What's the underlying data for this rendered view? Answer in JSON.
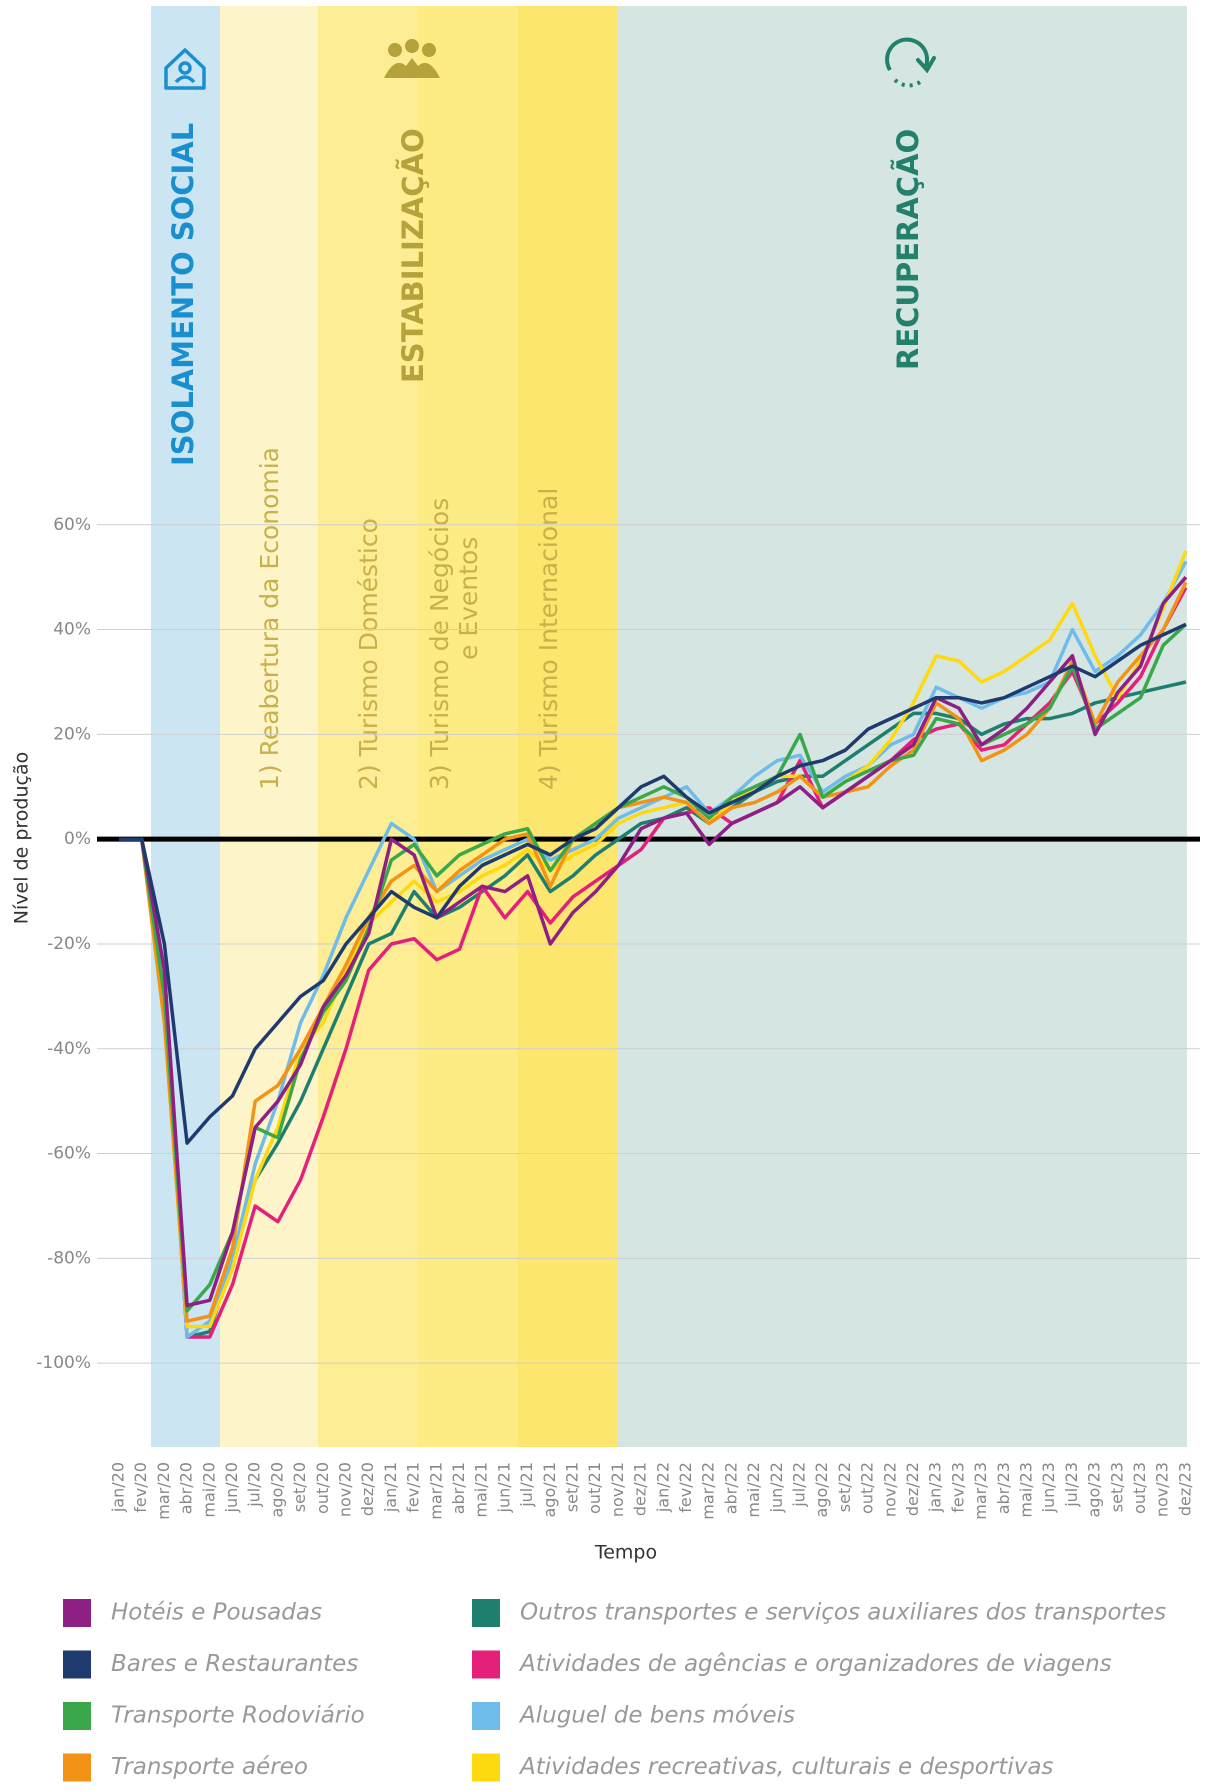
{
  "chart_data": {
    "type": "line",
    "bands": [
      {
        "label": "ISOLAMENTO SOCIAL"
      },
      {
        "label": "ESTABILIZAÇÃO"
      },
      {
        "label": "RECUPERAÇÃO"
      }
    ],
    "phases": [
      [
        "1) Reabertura da Economia"
      ],
      [
        "2) Turismo Doméstico"
      ],
      [
        "3) Turismo de Negócios",
        "e Eventos"
      ],
      [
        "4) Turismo Internacional"
      ]
    ],
    "y_label": "Nível de produção",
    "x_label": "Tempo",
    "categories": [
      "jan/20",
      "fev/20",
      "mar/20",
      "abr/20",
      "mai/20",
      "jun/20",
      "jul/20",
      "ago/20",
      "set/20",
      "out/20",
      "nov/20",
      "dez/20",
      "jan/21",
      "fev/21",
      "mar/21",
      "abr/21",
      "mai/21",
      "jun/21",
      "jul/21",
      "ago/21",
      "set/21",
      "out/21",
      "nov/21",
      "dez/21",
      "jan/22",
      "fev/22",
      "mar/22",
      "abr/22",
      "mai/22",
      "jun/22",
      "jul/22",
      "ago/22",
      "set/22",
      "out/22",
      "nov/22",
      "dez/22",
      "jan/23",
      "fev/23",
      "mar/23",
      "abr/23",
      "mai/23",
      "jun/23",
      "jul/23",
      "ago/23",
      "set/23",
      "out/23",
      "nov/23",
      "dez/23"
    ],
    "ylim": [
      -116,
      159
    ],
    "yticks": [
      {
        "value": -100,
        "label": "-100%"
      },
      {
        "value": -80,
        "label": "-80%"
      },
      {
        "value": -60,
        "label": "-60%"
      },
      {
        "value": -40,
        "label": "-40%"
      },
      {
        "value": -20,
        "label": "-20%"
      },
      {
        "value": 0,
        "label": "0%"
      },
      {
        "value": 20,
        "label": "20%"
      },
      {
        "value": 40,
        "label": "40%"
      },
      {
        "value": 60,
        "label": "60%"
      }
    ],
    "grid": true,
    "series": [
      {
        "name": "Outros transportes e serviços auxiliares dos transportes",
        "color": "#1f7f6e",
        "values": [
          0,
          0,
          -28,
          -95,
          -94,
          -80,
          -65,
          -58,
          -50,
          -40,
          -30,
          -20,
          -18,
          -10,
          -15,
          -13,
          -10,
          -7,
          -3,
          -10,
          -7,
          -3,
          0,
          3,
          4,
          6,
          3,
          6,
          9,
          11,
          12,
          12,
          15,
          18,
          21,
          24,
          24,
          23,
          20,
          22,
          23,
          23,
          24,
          26,
          27,
          28,
          29,
          30
        ]
      },
      {
        "name": "Atividades de agências e organizadores de viagens",
        "color": "#e5207a",
        "values": [
          0,
          0,
          -30,
          -95,
          -95,
          -85,
          -70,
          -73,
          -65,
          -53,
          -40,
          -25,
          -20,
          -19,
          -23,
          -21,
          -9,
          -15,
          -10,
          -16,
          -11,
          -8,
          -5,
          -2,
          4,
          5,
          6,
          3,
          5,
          7,
          15,
          6,
          9,
          12,
          15,
          19,
          21,
          22,
          17,
          18,
          22,
          26,
          32,
          22,
          26,
          31,
          40,
          48
        ]
      },
      {
        "name": "Aluguel de bens móveis",
        "color": "#6fbbe9",
        "values": [
          0,
          0,
          -28,
          -95,
          -92,
          -80,
          -62,
          -50,
          -35,
          -26,
          -15,
          -6,
          3,
          0,
          -10,
          -7,
          -4,
          -2,
          0,
          -4,
          -2,
          0,
          4,
          6,
          8,
          10,
          5,
          8,
          12,
          15,
          16,
          9,
          12,
          14,
          18,
          20,
          29,
          27,
          25,
          27,
          28,
          30,
          40,
          32,
          35,
          39,
          45,
          53
        ]
      },
      {
        "name": "Atividades recreativas, culturais e desportivas",
        "color": "#ffd90f",
        "values": [
          0,
          0,
          -35,
          -93,
          -93,
          -82,
          -65,
          -55,
          -40,
          -35,
          -25,
          -16,
          -12,
          -8,
          -12,
          -10,
          -7,
          -5,
          -2,
          -6,
          -3,
          -1,
          3,
          5,
          6,
          7,
          3,
          7,
          10,
          12,
          12,
          8,
          11,
          14,
          19,
          26,
          35,
          34,
          30,
          32,
          35,
          38,
          45,
          35,
          27,
          34,
          44,
          55
        ]
      },
      {
        "name": "Transporte aéreo",
        "color": "#f39315",
        "values": [
          0,
          0,
          -35,
          -92,
          -91,
          -78,
          -50,
          -47,
          -40,
          -32,
          -24,
          -15,
          -8,
          -5,
          -10,
          -6,
          -3,
          0,
          1,
          -9,
          0,
          3,
          6,
          7,
          8,
          7,
          3,
          6,
          7,
          9,
          12,
          8,
          9,
          10,
          14,
          17,
          26,
          23,
          15,
          17,
          20,
          25,
          34,
          22,
          30,
          35,
          40,
          49
        ]
      },
      {
        "name": "Transporte Rodoviário",
        "color": "#3aa84a",
        "values": [
          0,
          0,
          -30,
          -90,
          -85,
          -75,
          -55,
          -57,
          -42,
          -33,
          -27,
          -17,
          -4,
          -1,
          -7,
          -3,
          -1,
          1,
          2,
          -6,
          0,
          3,
          6,
          8,
          10,
          8,
          4,
          8,
          10,
          12,
          20,
          8,
          11,
          13,
          15,
          16,
          23,
          22,
          18,
          20,
          22,
          25,
          33,
          21,
          24,
          27,
          37,
          41
        ]
      },
      {
        "name": "Hotéis e Pousadas",
        "color": "#8e1f85",
        "values": [
          0,
          0,
          -25,
          -89,
          -88,
          -75,
          -55,
          -50,
          -43,
          -32,
          -26,
          -18,
          0,
          -3,
          -15,
          -12,
          -9,
          -10,
          -7,
          -20,
          -14,
          -10,
          -5,
          2,
          4,
          5,
          -1,
          3,
          5,
          7,
          10,
          6,
          9,
          12,
          15,
          18,
          27,
          25,
          18,
          21,
          25,
          30,
          35,
          20,
          28,
          33,
          45,
          50
        ]
      },
      {
        "name": "Bares e Restaurantes",
        "color": "#1f3a6e",
        "values": [
          0,
          0,
          -20,
          -58,
          -53,
          -49,
          -40,
          -35,
          -30,
          -27,
          -20,
          -15,
          -10,
          -13,
          -15,
          -9,
          -5,
          -3,
          -1,
          -3,
          0,
          2,
          6,
          10,
          12,
          8,
          5,
          7,
          9,
          12,
          14,
          15,
          17,
          21,
          23,
          25,
          27,
          27,
          26,
          27,
          29,
          31,
          33,
          31,
          34,
          37,
          39,
          41
        ]
      }
    ],
    "legend_order": [
      6,
      0,
      7,
      1,
      5,
      2,
      4,
      3
    ]
  }
}
